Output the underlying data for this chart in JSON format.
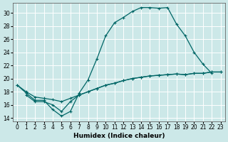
{
  "bg_color": "#cce8e8",
  "grid_color": "#ffffff",
  "line_color": "#006666",
  "xlabel": "Humidex (Indice chaleur)",
  "xlim": [
    -0.5,
    23.5
  ],
  "ylim": [
    13.5,
    31.5
  ],
  "yticks": [
    14,
    16,
    18,
    20,
    22,
    24,
    26,
    28,
    30
  ],
  "xticks": [
    0,
    1,
    2,
    3,
    4,
    5,
    6,
    7,
    8,
    9,
    10,
    11,
    12,
    13,
    14,
    15,
    16,
    17,
    18,
    19,
    20,
    21,
    22,
    23
  ],
  "curve1_x": [
    0,
    1,
    2,
    3,
    4,
    5,
    6,
    7,
    8,
    9,
    10,
    11,
    12,
    13,
    14,
    15,
    16,
    17,
    18,
    19,
    20,
    21,
    22
  ],
  "curve1_y": [
    19.0,
    17.8,
    16.7,
    16.7,
    15.3,
    14.3,
    15.0,
    17.8,
    19.8,
    23.0,
    26.5,
    28.5,
    29.3,
    30.2,
    30.8,
    30.8,
    30.7,
    30.8,
    28.3,
    26.5,
    24.0,
    22.2,
    20.8
  ],
  "curve2_x": [
    0,
    1,
    2,
    3,
    4,
    5,
    6,
    7,
    8,
    9,
    10,
    11,
    12,
    13,
    14,
    15,
    16,
    17,
    18,
    19,
    20,
    21,
    22,
    23
  ],
  "curve2_y": [
    19.0,
    18.0,
    17.2,
    17.0,
    16.8,
    16.5,
    17.0,
    17.5,
    18.0,
    18.5,
    19.0,
    19.3,
    19.7,
    20.0,
    20.2,
    20.4,
    20.5,
    20.6,
    20.7,
    20.6,
    20.8,
    20.8,
    21.0,
    21.0
  ],
  "curve3_x": [
    1,
    2,
    3,
    4,
    5,
    6,
    7,
    8,
    9,
    10,
    11,
    12,
    13,
    14,
    15,
    16,
    17,
    18,
    19,
    20,
    21,
    22,
    23
  ],
  "curve3_y": [
    17.5,
    16.5,
    16.5,
    16.0,
    15.0,
    16.5,
    17.5,
    18.0,
    18.5,
    19.0,
    19.3,
    19.7,
    20.0,
    20.2,
    20.4,
    20.5,
    20.6,
    20.7,
    20.6,
    20.8,
    20.8,
    21.0,
    21.0
  ]
}
